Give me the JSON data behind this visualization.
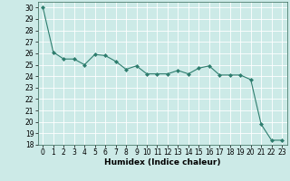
{
  "x": [
    0,
    1,
    2,
    3,
    4,
    5,
    6,
    7,
    8,
    9,
    10,
    11,
    12,
    13,
    14,
    15,
    16,
    17,
    18,
    19,
    20,
    21,
    22,
    23
  ],
  "y": [
    30.0,
    26.1,
    25.5,
    25.5,
    25.0,
    25.9,
    25.8,
    25.3,
    24.6,
    24.9,
    24.2,
    24.2,
    24.2,
    24.5,
    24.2,
    24.7,
    24.9,
    24.1,
    24.1,
    24.1,
    23.7,
    19.8,
    18.4,
    18.4
  ],
  "line_color": "#2e7d6e",
  "marker": "D",
  "marker_size": 2,
  "bg_color": "#cceae7",
  "grid_color": "#ffffff",
  "xlabel": "Humidex (Indice chaleur)",
  "ylim": [
    18,
    30.5
  ],
  "xlim": [
    -0.5,
    23.5
  ],
  "yticks": [
    18,
    19,
    20,
    21,
    22,
    23,
    24,
    25,
    26,
    27,
    28,
    29,
    30
  ],
  "xticks": [
    0,
    1,
    2,
    3,
    4,
    5,
    6,
    7,
    8,
    9,
    10,
    11,
    12,
    13,
    14,
    15,
    16,
    17,
    18,
    19,
    20,
    21,
    22,
    23
  ],
  "axis_fontsize": 6.5,
  "tick_fontsize": 5.5
}
